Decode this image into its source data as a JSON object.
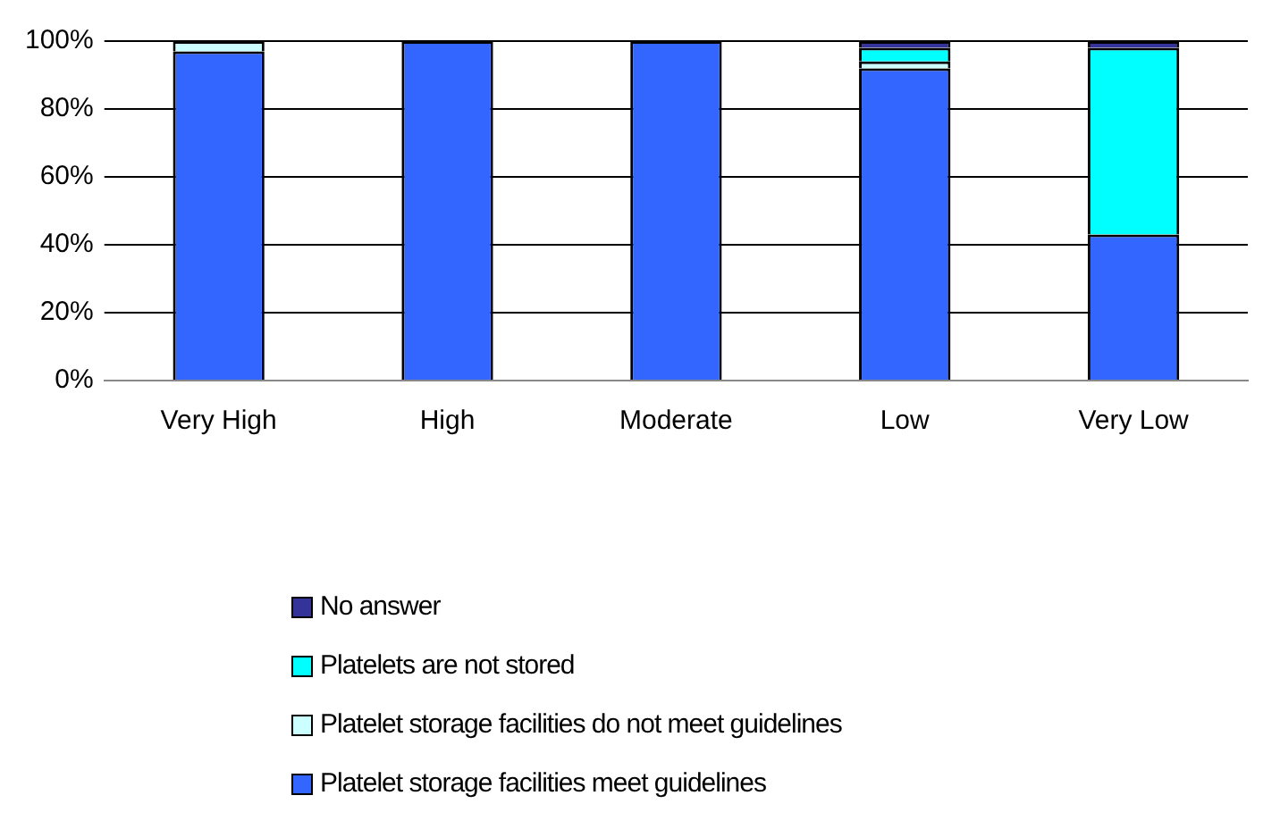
{
  "chart_data": {
    "type": "bar",
    "stacked": true,
    "categories": [
      "Very High",
      "High",
      "Moderate",
      "Low",
      "Very Low"
    ],
    "series": [
      {
        "name": "Platelet storage facilities meet guidelines",
        "color": "#3366ff",
        "values": [
          97,
          100,
          100,
          92,
          43
        ]
      },
      {
        "name": "Platelet storage facilities do not meet guidelines",
        "color": "#ccffff",
        "values": [
          3,
          0,
          0,
          2,
          0
        ]
      },
      {
        "name": "Platelets are not stored",
        "color": "#00ffff",
        "values": [
          0,
          0,
          0,
          4,
          55
        ]
      },
      {
        "name": "No answer",
        "color": "#333399",
        "values": [
          0,
          0,
          0,
          2,
          2
        ]
      }
    ],
    "ylim": [
      0,
      100
    ],
    "yticks": [
      {
        "value": 0,
        "label": "0%"
      },
      {
        "value": 20,
        "label": "20%"
      },
      {
        "value": 40,
        "label": "40%"
      },
      {
        "value": 60,
        "label": "60%"
      },
      {
        "value": 80,
        "label": "80%"
      },
      {
        "value": 100,
        "label": "100%"
      }
    ],
    "grid": "y",
    "legend": "bottom"
  }
}
